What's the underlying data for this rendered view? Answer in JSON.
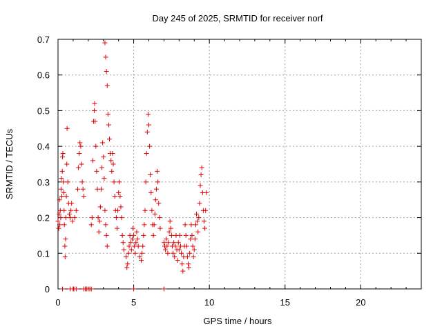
{
  "chart_data": {
    "type": "scatter",
    "title": "Day 245 of 2025, SRMTID for receiver norf",
    "xlabel": "GPS time / hours",
    "ylabel": "SRMTID / TECUs",
    "xlim": [
      0,
      24
    ],
    "ylim": [
      0,
      0.7
    ],
    "x_ticks": [
      0,
      5,
      10,
      15,
      20
    ],
    "x_tick_labels": [
      "0",
      "5",
      "10",
      "15",
      "20"
    ],
    "y_ticks": [
      0,
      0.1,
      0.2,
      0.3,
      0.4,
      0.5,
      0.6,
      0.7
    ],
    "y_tick_labels": [
      "0",
      "0.1",
      "0.2",
      "0.3",
      "0.4",
      "0.5",
      "0.6",
      "0.7"
    ],
    "grid": true,
    "marker": "+",
    "color": "#e00000",
    "series": [
      {
        "name": "norf",
        "points": [
          [
            0.0,
            0.19
          ],
          [
            0.05,
            0.17
          ],
          [
            0.08,
            0.21
          ],
          [
            0.1,
            0.25
          ],
          [
            0.12,
            0.18
          ],
          [
            0.15,
            0.22
          ],
          [
            0.18,
            0.2
          ],
          [
            0.2,
            0.28
          ],
          [
            0.22,
            0.31
          ],
          [
            0.25,
            0.26
          ],
          [
            0.28,
            0.33
          ],
          [
            0.3,
            0.37
          ],
          [
            0.32,
            0.38
          ],
          [
            0.35,
            0.3
          ],
          [
            0.38,
            0.27
          ],
          [
            0.4,
            0.22
          ],
          [
            0.42,
            0.18
          ],
          [
            0.45,
            0.12
          ],
          [
            0.47,
            0.09
          ],
          [
            0.5,
            0.14
          ],
          [
            0.52,
            0.2
          ],
          [
            0.55,
            0.26
          ],
          [
            0.58,
            0.35
          ],
          [
            0.6,
            0.45
          ],
          [
            0.65,
            0.3
          ],
          [
            0.7,
            0.24
          ],
          [
            0.75,
            0.21
          ],
          [
            0.8,
            0.2
          ],
          [
            0.85,
            0.22
          ],
          [
            0.9,
            0.24
          ],
          [
            0.95,
            0.19
          ],
          [
            1.1,
            0.2
          ],
          [
            1.2,
            0.22
          ],
          [
            1.3,
            0.28
          ],
          [
            1.35,
            0.34
          ],
          [
            1.4,
            0.38
          ],
          [
            1.45,
            0.41
          ],
          [
            1.5,
            0.4
          ],
          [
            1.55,
            0.35
          ],
          [
            1.6,
            0.3
          ],
          [
            1.65,
            0.28
          ],
          [
            1.7,
            0.26
          ],
          [
            2.2,
            0.18
          ],
          [
            2.25,
            0.2
          ],
          [
            2.3,
            0.36
          ],
          [
            2.35,
            0.47
          ],
          [
            2.4,
            0.5
          ],
          [
            2.42,
            0.52
          ],
          [
            2.45,
            0.47
          ],
          [
            2.5,
            0.4
          ],
          [
            2.55,
            0.33
          ],
          [
            2.6,
            0.28
          ],
          [
            2.65,
            0.2
          ],
          [
            2.7,
            0.16
          ],
          [
            2.75,
            0.19
          ],
          [
            2.8,
            0.23
          ],
          [
            2.85,
            0.28
          ],
          [
            2.9,
            0.34
          ],
          [
            2.95,
            0.41
          ],
          [
            3.0,
            0.37
          ],
          [
            3.05,
            0.31
          ],
          [
            3.1,
            0.22
          ],
          [
            3.15,
            0.18
          ],
          [
            3.2,
            0.15
          ],
          [
            3.25,
            0.12
          ],
          [
            3.1,
            0.69
          ],
          [
            3.15,
            0.65
          ],
          [
            3.2,
            0.61
          ],
          [
            3.25,
            0.57
          ],
          [
            3.3,
            0.49
          ],
          [
            3.35,
            0.46
          ],
          [
            3.4,
            0.42
          ],
          [
            3.45,
            0.38
          ],
          [
            3.5,
            0.36
          ],
          [
            3.55,
            0.33
          ],
          [
            3.6,
            0.38
          ],
          [
            3.65,
            0.35
          ],
          [
            3.7,
            0.3
          ],
          [
            3.75,
            0.26
          ],
          [
            3.8,
            0.22
          ],
          [
            3.85,
            0.2
          ],
          [
            3.9,
            0.17
          ],
          [
            3.95,
            0.22
          ],
          [
            4.0,
            0.27
          ],
          [
            4.05,
            0.3
          ],
          [
            4.1,
            0.26
          ],
          [
            4.15,
            0.23
          ],
          [
            4.2,
            0.2
          ],
          [
            4.25,
            0.15
          ],
          [
            4.3,
            0.13
          ],
          [
            4.35,
            0.11
          ],
          [
            4.5,
            0.09
          ],
          [
            4.55,
            0.06
          ],
          [
            4.6,
            0.07
          ],
          [
            4.65,
            0.1
          ],
          [
            4.7,
            0.12
          ],
          [
            4.75,
            0.15
          ],
          [
            4.8,
            0.13
          ],
          [
            4.85,
            0.11
          ],
          [
            4.9,
            0.14
          ],
          [
            4.95,
            0.17
          ],
          [
            5.0,
            0.15
          ],
          [
            5.05,
            0.12
          ],
          [
            5.1,
            0.1
          ],
          [
            5.15,
            0.13
          ],
          [
            5.2,
            0.16
          ],
          [
            5.25,
            0.14
          ],
          [
            5.3,
            0.12
          ],
          [
            5.4,
            0.09
          ],
          [
            5.5,
            0.08
          ],
          [
            5.55,
            0.1
          ],
          [
            5.6,
            0.12
          ],
          [
            5.65,
            0.15
          ],
          [
            5.7,
            0.18
          ],
          [
            5.75,
            0.22
          ],
          [
            5.8,
            0.3
          ],
          [
            5.85,
            0.38
          ],
          [
            5.9,
            0.44
          ],
          [
            5.95,
            0.49
          ],
          [
            6.0,
            0.46
          ],
          [
            6.05,
            0.4
          ],
          [
            6.1,
            0.32
          ],
          [
            6.15,
            0.27
          ],
          [
            6.2,
            0.22
          ],
          [
            6.25,
            0.18
          ],
          [
            6.3,
            0.15
          ],
          [
            6.35,
            0.18
          ],
          [
            6.4,
            0.21
          ],
          [
            6.45,
            0.25
          ],
          [
            6.5,
            0.28
          ],
          [
            6.55,
            0.33
          ],
          [
            6.6,
            0.3
          ],
          [
            6.65,
            0.24
          ],
          [
            6.7,
            0.2
          ],
          [
            6.75,
            0.17
          ],
          [
            7.0,
            0.13
          ],
          [
            7.05,
            0.12
          ],
          [
            7.1,
            0.11
          ],
          [
            7.15,
            0.14
          ],
          [
            7.2,
            0.12
          ],
          [
            7.25,
            0.1
          ],
          [
            7.3,
            0.13
          ],
          [
            7.35,
            0.16
          ],
          [
            7.4,
            0.19
          ],
          [
            7.45,
            0.17
          ],
          [
            7.5,
            0.15
          ],
          [
            7.55,
            0.12
          ],
          [
            7.6,
            0.1
          ],
          [
            7.65,
            0.13
          ],
          [
            7.7,
            0.09
          ],
          [
            7.75,
            0.12
          ],
          [
            7.8,
            0.15
          ],
          [
            7.85,
            0.11
          ],
          [
            7.9,
            0.08
          ],
          [
            7.95,
            0.13
          ],
          [
            8.0,
            0.11
          ],
          [
            8.05,
            0.15
          ],
          [
            8.1,
            0.12
          ],
          [
            8.15,
            0.1
          ],
          [
            8.2,
            0.07
          ],
          [
            8.25,
            0.05
          ],
          [
            8.3,
            0.09
          ],
          [
            8.35,
            0.12
          ],
          [
            8.4,
            0.18
          ],
          [
            8.45,
            0.15
          ],
          [
            8.5,
            0.12
          ],
          [
            8.55,
            0.09
          ],
          [
            8.6,
            0.07
          ],
          [
            8.65,
            0.06
          ],
          [
            8.7,
            0.1
          ],
          [
            8.75,
            0.14
          ],
          [
            8.8,
            0.18
          ],
          [
            8.85,
            0.15
          ],
          [
            8.9,
            0.12
          ],
          [
            8.95,
            0.09
          ],
          [
            9.0,
            0.11
          ],
          [
            9.05,
            0.14
          ],
          [
            9.1,
            0.18
          ],
          [
            9.15,
            0.21
          ],
          [
            9.2,
            0.19
          ],
          [
            9.25,
            0.16
          ],
          [
            9.3,
            0.2
          ],
          [
            9.35,
            0.24
          ],
          [
            9.4,
            0.29
          ],
          [
            9.45,
            0.32
          ],
          [
            9.5,
            0.34
          ],
          [
            9.55,
            0.27
          ],
          [
            9.6,
            0.22
          ],
          [
            9.65,
            0.19
          ],
          [
            9.7,
            0.17
          ],
          [
            9.75,
            0.22
          ],
          [
            9.8,
            0.27
          ],
          [
            0.3,
            0.0
          ],
          [
            0.8,
            0.0
          ],
          [
            1.0,
            0.0
          ],
          [
            1.05,
            0.0
          ],
          [
            1.2,
            0.0
          ],
          [
            1.7,
            0.0
          ],
          [
            1.8,
            0.0
          ],
          [
            1.9,
            0.0
          ],
          [
            2.0,
            0.0
          ],
          [
            2.1,
            0.0
          ],
          [
            2.2,
            0.0
          ],
          [
            5.0,
            0.0
          ],
          [
            7.0,
            0.0
          ]
        ]
      }
    ]
  }
}
